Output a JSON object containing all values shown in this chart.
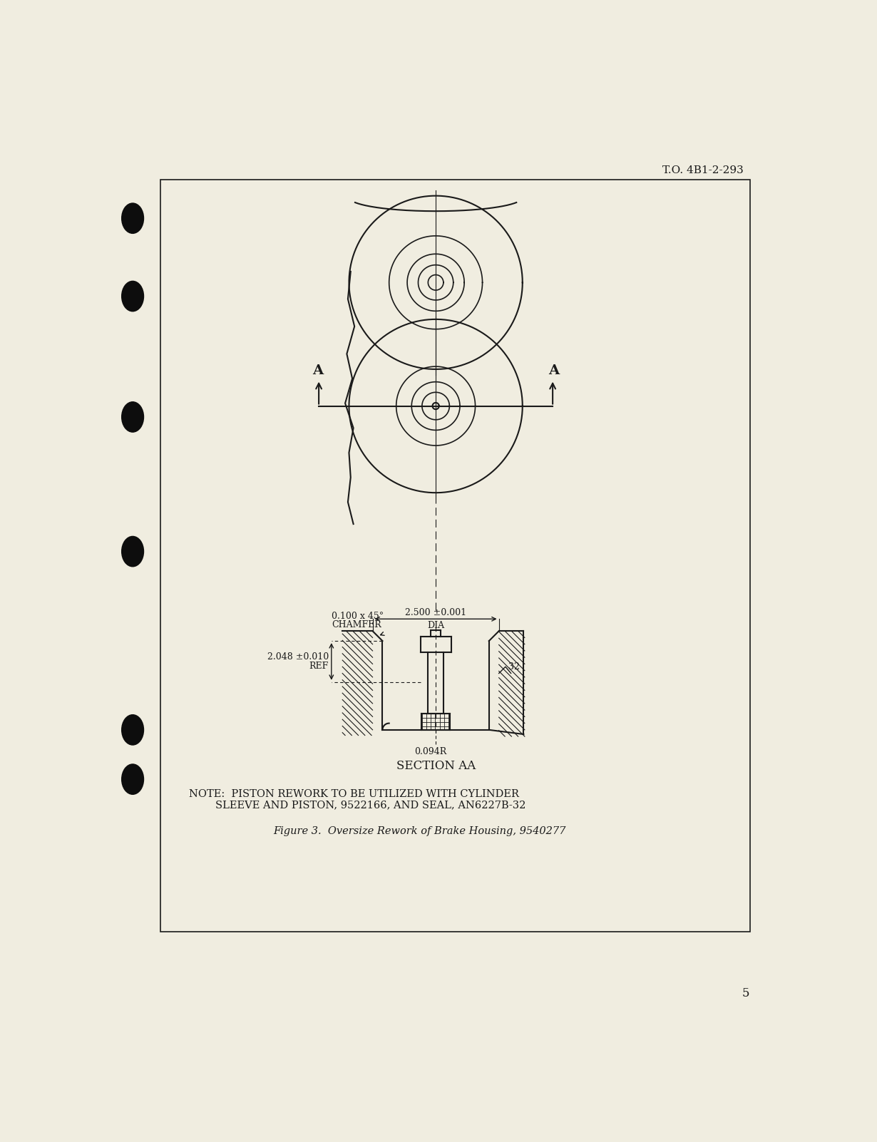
{
  "bg_color": "#f0ede0",
  "line_color": "#1a1a1a",
  "header_text": "T.O. 4B1-2-293",
  "figure_caption": "Figure 3.  Oversize Rework of Brake Housing, 9540277",
  "section_label": "SECTION AA",
  "note_line1": "NOTE:  PISTON REWORK TO BE UTILIZED WITH CYLINDER",
  "note_line2": "        SLEEVE AND PISTON, 9522166, AND SEAL, AN6227B-32",
  "dim_chamfer_line1": "0.100 x 45°",
  "dim_chamfer_line2": "CHAMFER",
  "dim_dia": "←2.500 ±0.001→",
  "dim_dia_label": "DIA",
  "dim_depth_val": "2.048 ±0.010",
  "dim_depth_label": "REF",
  "dim_radius": "0.094R",
  "dim_surface": "32",
  "label_A_left": "A",
  "label_A_right": "A",
  "page_number": "5"
}
